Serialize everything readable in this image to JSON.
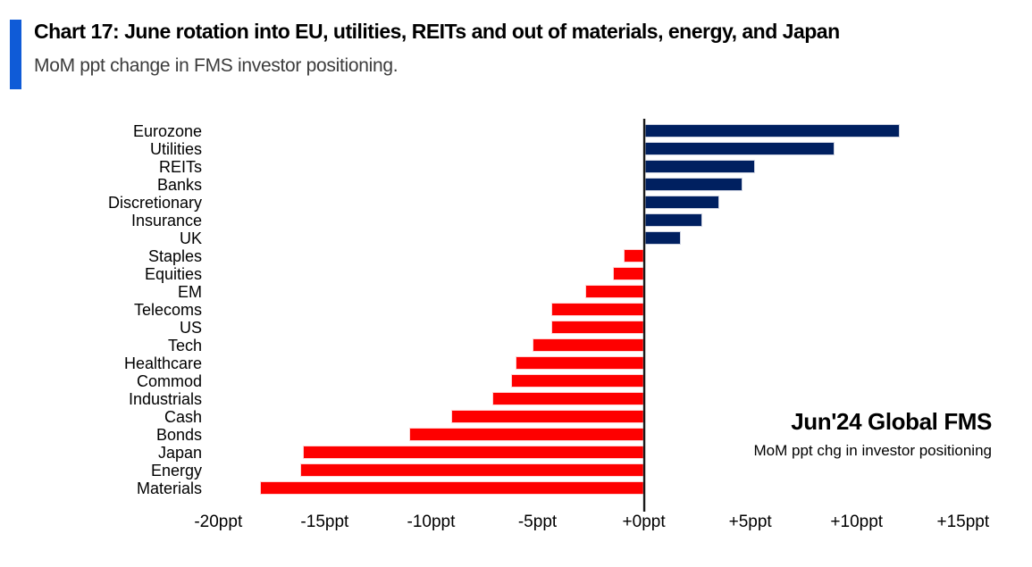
{
  "header": {
    "title": "Chart 17: June rotation into EU, utilities, REITs and out of materials, energy, and Japan",
    "subtitle": "MoM ppt change in FMS investor positioning.",
    "accent_color": "#0f5bd7"
  },
  "annotation": {
    "line1": "Jun'24 Global FMS",
    "line2": "MoM ppt chg in investor positioning"
  },
  "chart_data": {
    "type": "bar",
    "orientation": "horizontal",
    "title": "Chart 17: June rotation into EU, utilities, REITs and out of materials, energy, and Japan",
    "subtitle": "MoM ppt change in FMS investor positioning.",
    "unit": "ppt",
    "categories": [
      "Eurozone",
      "Utilities",
      "REITs",
      "Banks",
      "Discretionary",
      "Insurance",
      "UK",
      "Staples",
      "Equities",
      "EM",
      "Telecoms",
      "US",
      "Tech",
      "Healthcare",
      "Commod",
      "Industrials",
      "Cash",
      "Bonds",
      "Japan",
      "Energy",
      "Materials"
    ],
    "values": [
      12.0,
      8.9,
      5.2,
      4.6,
      3.5,
      2.7,
      1.7,
      -0.9,
      -1.4,
      -2.7,
      -4.3,
      -4.3,
      -5.2,
      -6.0,
      -6.2,
      -7.1,
      -9.0,
      -11.0,
      -16.0,
      -16.1,
      -18.0
    ],
    "positive_color": "#002060",
    "negative_color": "#fe0000",
    "xlim": [
      -20.6,
      17.4
    ],
    "x_ticks": [
      {
        "value": -20,
        "label": "-20ppt"
      },
      {
        "value": -15,
        "label": "-15ppt"
      },
      {
        "value": -10,
        "label": "-10ppt"
      },
      {
        "value": -5,
        "label": "-5ppt"
      },
      {
        "value": 0,
        "label": "+0ppt"
      },
      {
        "value": 5,
        "label": "+5ppt"
      },
      {
        "value": 10,
        "label": "+10ppt"
      },
      {
        "value": 15,
        "label": "+15ppt"
      }
    ],
    "grid": false,
    "legend": false
  }
}
